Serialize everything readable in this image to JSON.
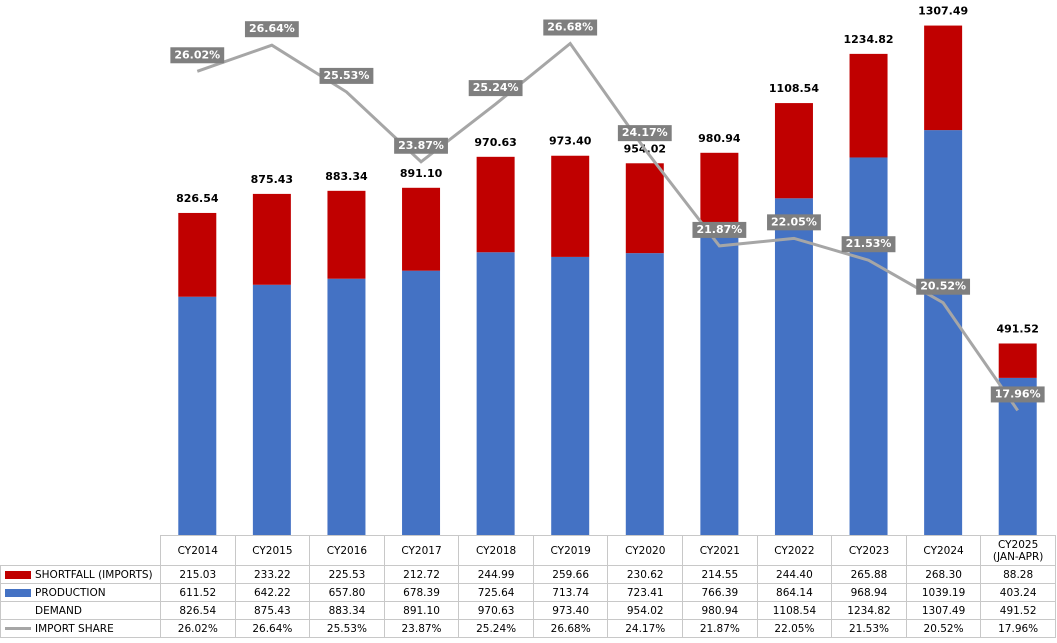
{
  "chart_data": {
    "type": "bar",
    "categories": [
      "CY2014",
      "CY2015",
      "CY2016",
      "CY2017",
      "CY2018",
      "CY2019",
      "CY2020",
      "CY2021",
      "CY2022",
      "CY2023",
      "CY2024",
      "CY2025\n(JAN-APR)"
    ],
    "series": [
      {
        "name": "SHORTFALL (IMPORTS)",
        "color": "#c00000",
        "stack": true,
        "values": [
          215.03,
          233.22,
          225.53,
          212.72,
          244.99,
          259.66,
          230.62,
          214.55,
          244.4,
          265.88,
          268.3,
          88.28
        ],
        "value_labels": [
          "215.03",
          "233.22",
          "225.53",
          "212.72",
          "244.99",
          "259.66",
          "230.62",
          "214.55",
          "244.40",
          "265.88",
          "268.30",
          "88.28"
        ]
      },
      {
        "name": "PRODUCTION",
        "color": "#4472c4",
        "stack": true,
        "values": [
          611.52,
          642.22,
          657.8,
          678.39,
          725.64,
          713.74,
          723.41,
          766.39,
          864.14,
          968.94,
          1039.19,
          403.24
        ],
        "value_labels": [
          "611.52",
          "642.22",
          "657.80",
          "678.39",
          "725.64",
          "713.74",
          "723.41",
          "766.39",
          "864.14",
          "968.94",
          "1039.19",
          "403.24"
        ]
      },
      {
        "name": "DEMAND",
        "values": [
          826.54,
          875.43,
          883.34,
          891.1,
          970.63,
          973.4,
          954.02,
          980.94,
          1108.54,
          1234.82,
          1307.49,
          491.52
        ],
        "value_labels": [
          "826.54",
          "875.43",
          "883.34",
          "891.10",
          "970.63",
          "973.40",
          "954.02",
          "980.94",
          "1108.54",
          "1234.82",
          "1307.49",
          "491.52"
        ]
      },
      {
        "name": "IMPORT SHARE",
        "color": "#a6a6a6",
        "type": "line",
        "axis": "y2",
        "values": [
          26.02,
          26.64,
          25.53,
          23.87,
          25.24,
          26.68,
          24.17,
          21.87,
          22.05,
          21.53,
          20.52,
          17.96
        ],
        "value_labels": [
          "26.02%",
          "26.64%",
          "25.53%",
          "23.87%",
          "25.24%",
          "26.68%",
          "24.17%",
          "21.87%",
          "22.05%",
          "21.53%",
          "20.52%",
          "17.96%"
        ]
      }
    ],
    "ylim": [
      0,
      1350
    ],
    "y2lim": [
      15,
      27.5
    ]
  }
}
